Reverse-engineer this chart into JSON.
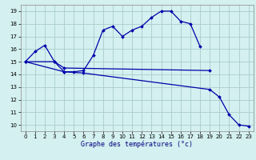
{
  "xlabel": "Graphe des températures (°c)",
  "bg_color": "#d4f0f0",
  "line_color": "#0000aa",
  "grid_color": "#aacccc",
  "xlim": [
    -0.5,
    23.5
  ],
  "ylim": [
    9.5,
    19.5
  ],
  "xticks": [
    0,
    1,
    2,
    3,
    4,
    5,
    6,
    7,
    8,
    9,
    10,
    11,
    12,
    13,
    14,
    15,
    16,
    17,
    18,
    19,
    20,
    21,
    22,
    23
  ],
  "yticks": [
    10,
    11,
    12,
    13,
    14,
    15,
    16,
    17,
    18,
    19
  ],
  "line1": {
    "x": [
      0,
      1,
      2,
      3,
      4,
      5,
      6,
      7,
      8,
      9,
      10,
      11,
      12,
      13,
      14,
      15,
      16,
      17,
      18
    ],
    "y": [
      15.0,
      15.8,
      16.3,
      15.0,
      14.2,
      14.2,
      14.3,
      15.5,
      17.5,
      17.8,
      17.0,
      17.5,
      17.8,
      18.5,
      19.0,
      19.0,
      18.2,
      18.0,
      16.2
    ]
  },
  "line2": {
    "x": [
      0,
      3,
      4,
      19
    ],
    "y": [
      15.0,
      15.0,
      14.5,
      14.3
    ]
  },
  "line3": {
    "x": [
      0,
      4,
      6,
      19,
      20,
      21,
      22,
      23
    ],
    "y": [
      15.0,
      14.2,
      14.1,
      12.8,
      12.2,
      10.8,
      10.0,
      9.9
    ]
  },
  "xlabel_fontsize": 6,
  "tick_fontsize": 5
}
